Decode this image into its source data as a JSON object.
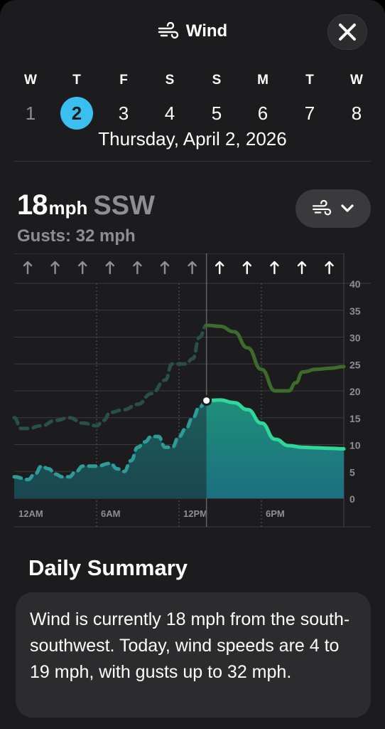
{
  "header": {
    "title": "Wind",
    "close_label": "✕"
  },
  "days": [
    {
      "dow": "W",
      "num": "1",
      "state": "past"
    },
    {
      "dow": "T",
      "num": "2",
      "state": "selected"
    },
    {
      "dow": "F",
      "num": "3",
      "state": "future"
    },
    {
      "dow": "S",
      "num": "4",
      "state": "future"
    },
    {
      "dow": "S",
      "num": "5",
      "state": "future"
    },
    {
      "dow": "M",
      "num": "6",
      "state": "future"
    },
    {
      "dow": "T",
      "num": "7",
      "state": "future"
    },
    {
      "dow": "W",
      "num": "8",
      "state": "future"
    }
  ],
  "date_line": "Thursday, April 2, 2026",
  "current": {
    "speed": "18",
    "unit": "mph",
    "direction": "SSW",
    "gusts": "Gusts: 32 mph"
  },
  "selector": {
    "icon": "wind-icon",
    "chevron": "chevron-down-icon"
  },
  "colors": {
    "accent": "#3ac0f0",
    "wind_future": "#2fd79b",
    "gust_future": "#3d6b2b",
    "past_fill": "#1f5f5c",
    "past_line": "#2e9a9a"
  },
  "chart_data": {
    "type": "area",
    "x_unit": "hour",
    "xlim": [
      0,
      24
    ],
    "ylim": [
      0,
      40
    ],
    "y_ticks": [
      "0",
      "5",
      "10",
      "15",
      "20",
      "25",
      "30",
      "35",
      "40"
    ],
    "x_tick_labels": [
      {
        "hour": 0,
        "label": "12AM"
      },
      {
        "hour": 6,
        "label": "6AM"
      },
      {
        "hour": 12,
        "label": "12PM"
      },
      {
        "hour": 18,
        "label": "6PM"
      }
    ],
    "now_hour": 14,
    "direction_arrows_count": 12,
    "series": [
      {
        "values": [
          [
            0,
            4
          ],
          [
            1,
            3.5
          ],
          [
            1.5,
            4.5
          ],
          [
            2,
            6
          ],
          [
            2.5,
            5.5
          ],
          [
            3,
            4.5
          ],
          [
            3.5,
            4
          ],
          [
            4,
            4
          ],
          [
            4.5,
            5
          ],
          [
            5,
            6
          ],
          [
            6,
            6
          ],
          [
            7,
            6.5
          ],
          [
            7.5,
            5.5
          ],
          [
            8,
            5
          ],
          [
            8.5,
            7
          ],
          [
            9,
            9.5
          ],
          [
            9.5,
            10.5
          ],
          [
            10,
            11.5
          ],
          [
            10.5,
            11.5
          ],
          [
            11,
            9.5
          ],
          [
            11.5,
            9.5
          ],
          [
            12,
            11.5
          ],
          [
            12.5,
            13
          ],
          [
            13,
            15
          ],
          [
            13.5,
            17
          ],
          [
            14,
            18.2
          ],
          [
            15,
            18.3
          ],
          [
            16,
            17.8
          ],
          [
            17,
            16.5
          ],
          [
            18,
            14
          ],
          [
            19,
            11
          ],
          [
            20,
            9.8
          ],
          [
            21,
            9.5
          ],
          [
            22,
            9.4
          ],
          [
            23,
            9.3
          ],
          [
            24,
            9.2
          ]
        ]
      },
      {
        "values": [
          [
            0,
            15
          ],
          [
            0.5,
            13
          ],
          [
            1,
            13
          ],
          [
            2,
            13.5
          ],
          [
            3,
            14.5
          ],
          [
            4,
            15
          ],
          [
            5,
            14
          ],
          [
            6,
            13.5
          ],
          [
            6.5,
            14.5
          ],
          [
            7,
            16
          ],
          [
            8,
            16.5
          ],
          [
            9,
            17.5
          ],
          [
            10,
            19.5
          ],
          [
            11,
            22
          ],
          [
            11.5,
            25
          ],
          [
            12,
            25
          ],
          [
            12.5,
            25
          ],
          [
            13,
            26
          ],
          [
            13.5,
            30
          ],
          [
            14,
            32.2
          ],
          [
            15,
            32
          ],
          [
            16,
            31
          ],
          [
            17,
            28
          ],
          [
            18,
            24
          ],
          [
            19,
            20
          ],
          [
            20,
            20
          ],
          [
            20.5,
            21.5
          ],
          [
            21,
            23.5
          ],
          [
            22,
            24
          ],
          [
            23,
            24.2
          ],
          [
            24,
            24.5
          ]
        ]
      }
    ]
  },
  "summary": {
    "title": "Daily Summary",
    "text": "Wind is currently 18 mph from the south-southwest. Today, wind speeds are 4 to 19 mph, with gusts up to 32 mph."
  }
}
